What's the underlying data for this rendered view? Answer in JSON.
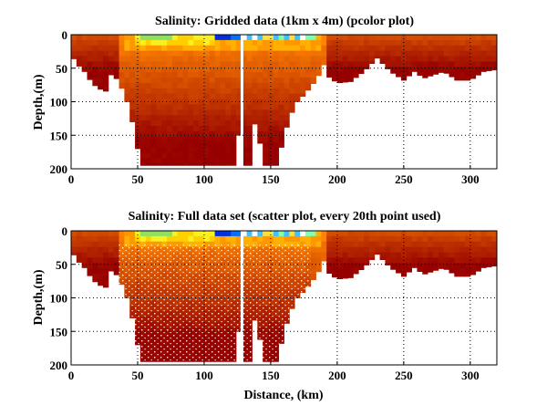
{
  "chart_data": [
    {
      "type": "heatmap",
      "title": "Salinity: Gridded data (1km x 4m) (pcolor plot)",
      "xlabel": "",
      "ylabel": "Depth,(m)",
      "xlim": [
        0,
        320
      ],
      "ylim": [
        200,
        0
      ],
      "xticks": [
        "0",
        "50",
        "100",
        "150",
        "200",
        "250",
        "300"
      ],
      "yticks": [
        "0",
        "50",
        "100",
        "150",
        "200"
      ],
      "grid": true,
      "style": "pcolor",
      "colormap": "jet",
      "bottom_depth_profile": {
        "distance_km": [
          0,
          5,
          10,
          15,
          20,
          27,
          30,
          33,
          38,
          42,
          46,
          50,
          52,
          125,
          126,
          127,
          128,
          130,
          135,
          137,
          140,
          145,
          155,
          160,
          165,
          170,
          175,
          180,
          185,
          190,
          193,
          200,
          210,
          220,
          230,
          240,
          250,
          258,
          265,
          280,
          290,
          300,
          310,
          320
        ],
        "depth_m": [
          30,
          45,
          55,
          70,
          80,
          85,
          60,
          62,
          80,
          100,
          130,
          170,
          195,
          195,
          150,
          150,
          0,
          195,
          195,
          130,
          140,
          195,
          195,
          150,
          120,
          100,
          90,
          78,
          65,
          45,
          62,
          72,
          70,
          55,
          35,
          55,
          68,
          55,
          65,
          55,
          68,
          68,
          55,
          52
        ]
      },
      "surface_features": [
        {
          "distance_km": [
            50,
            110
          ],
          "depth_m": [
            0,
            15
          ],
          "salinity_level": "low (yellow-green)"
        },
        {
          "distance_km": [
            110,
            128
          ],
          "depth_m": [
            0,
            8
          ],
          "salinity_level": "lowest (blue)"
        },
        {
          "distance_km": [
            128,
            185
          ],
          "depth_m": [
            0,
            8
          ],
          "salinity_level": "low (cyan, patchy)"
        }
      ]
    },
    {
      "type": "scatter",
      "title": "Salinity: Full data set (scatter plot, every 20th point used)",
      "xlabel": "Distance, (km)",
      "ylabel": "Depth,(m)",
      "xlim": [
        0,
        320
      ],
      "ylim": [
        200,
        0
      ],
      "xticks": [
        "0",
        "50",
        "100",
        "150",
        "200",
        "250",
        "300"
      ],
      "yticks": [
        "0",
        "50",
        "100",
        "150",
        "200"
      ],
      "grid": true,
      "style": "scatter",
      "colormap": "jet"
    }
  ]
}
